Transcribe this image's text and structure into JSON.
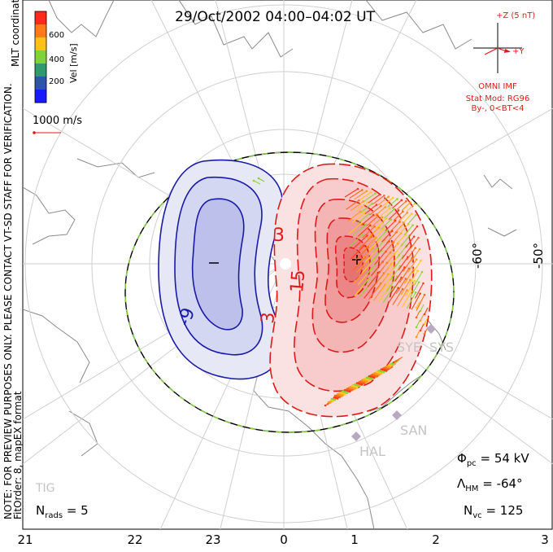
{
  "title": "29/Oct/2002 04:00–04:02 UT",
  "coordinates_label": "MLT coordinates",
  "color_bar": {
    "label": "Vel [m/s]",
    "ticks": [
      "600",
      "400",
      "200"
    ],
    "colors": [
      "#ff2a1a",
      "#ff7a1a",
      "#ffc01a",
      "#7fd23a",
      "#2f9a6e",
      "#2d55a8",
      "#1a1aff"
    ]
  },
  "velocity_reference": "1000 m/s",
  "notice": [
    "NOTE: FOR PREVIEW PURPOSES ONLY. PLEASE CONTACT VT-SD STAFF FOR VERIFICATION.",
    "FitOrder: 8, mapEX format"
  ],
  "imf": {
    "z_label": "+Z (5 nT)",
    "y_label": "+Y",
    "source": "OMNI IMF",
    "model": "Stat Mod: RG96",
    "bins": "By-, 0<BT<4"
  },
  "latitude_labels": [
    "-60°",
    "-50°"
  ],
  "contour_labels": [
    "3",
    "15",
    "3",
    "-9"
  ],
  "stations": [
    "SYE",
    "SYS",
    "SAN",
    "HAL",
    "TIG"
  ],
  "stats": {
    "phi_pc": "54 kV",
    "lambda_hm": "-64°",
    "n_vc": "125",
    "n_rads": "5"
  },
  "stats_labels": {
    "phi": "Φ",
    "phi_sub": "pc",
    "lambda": "Λ",
    "lambda_sub": "HM",
    "nvc": "N",
    "nvc_sub": "vc",
    "nrads": "N",
    "nrads_sub": "rads",
    "eq": "="
  },
  "mlt_ticks": [
    "21",
    "22",
    "23",
    "0",
    "1",
    "2",
    "3"
  ]
}
